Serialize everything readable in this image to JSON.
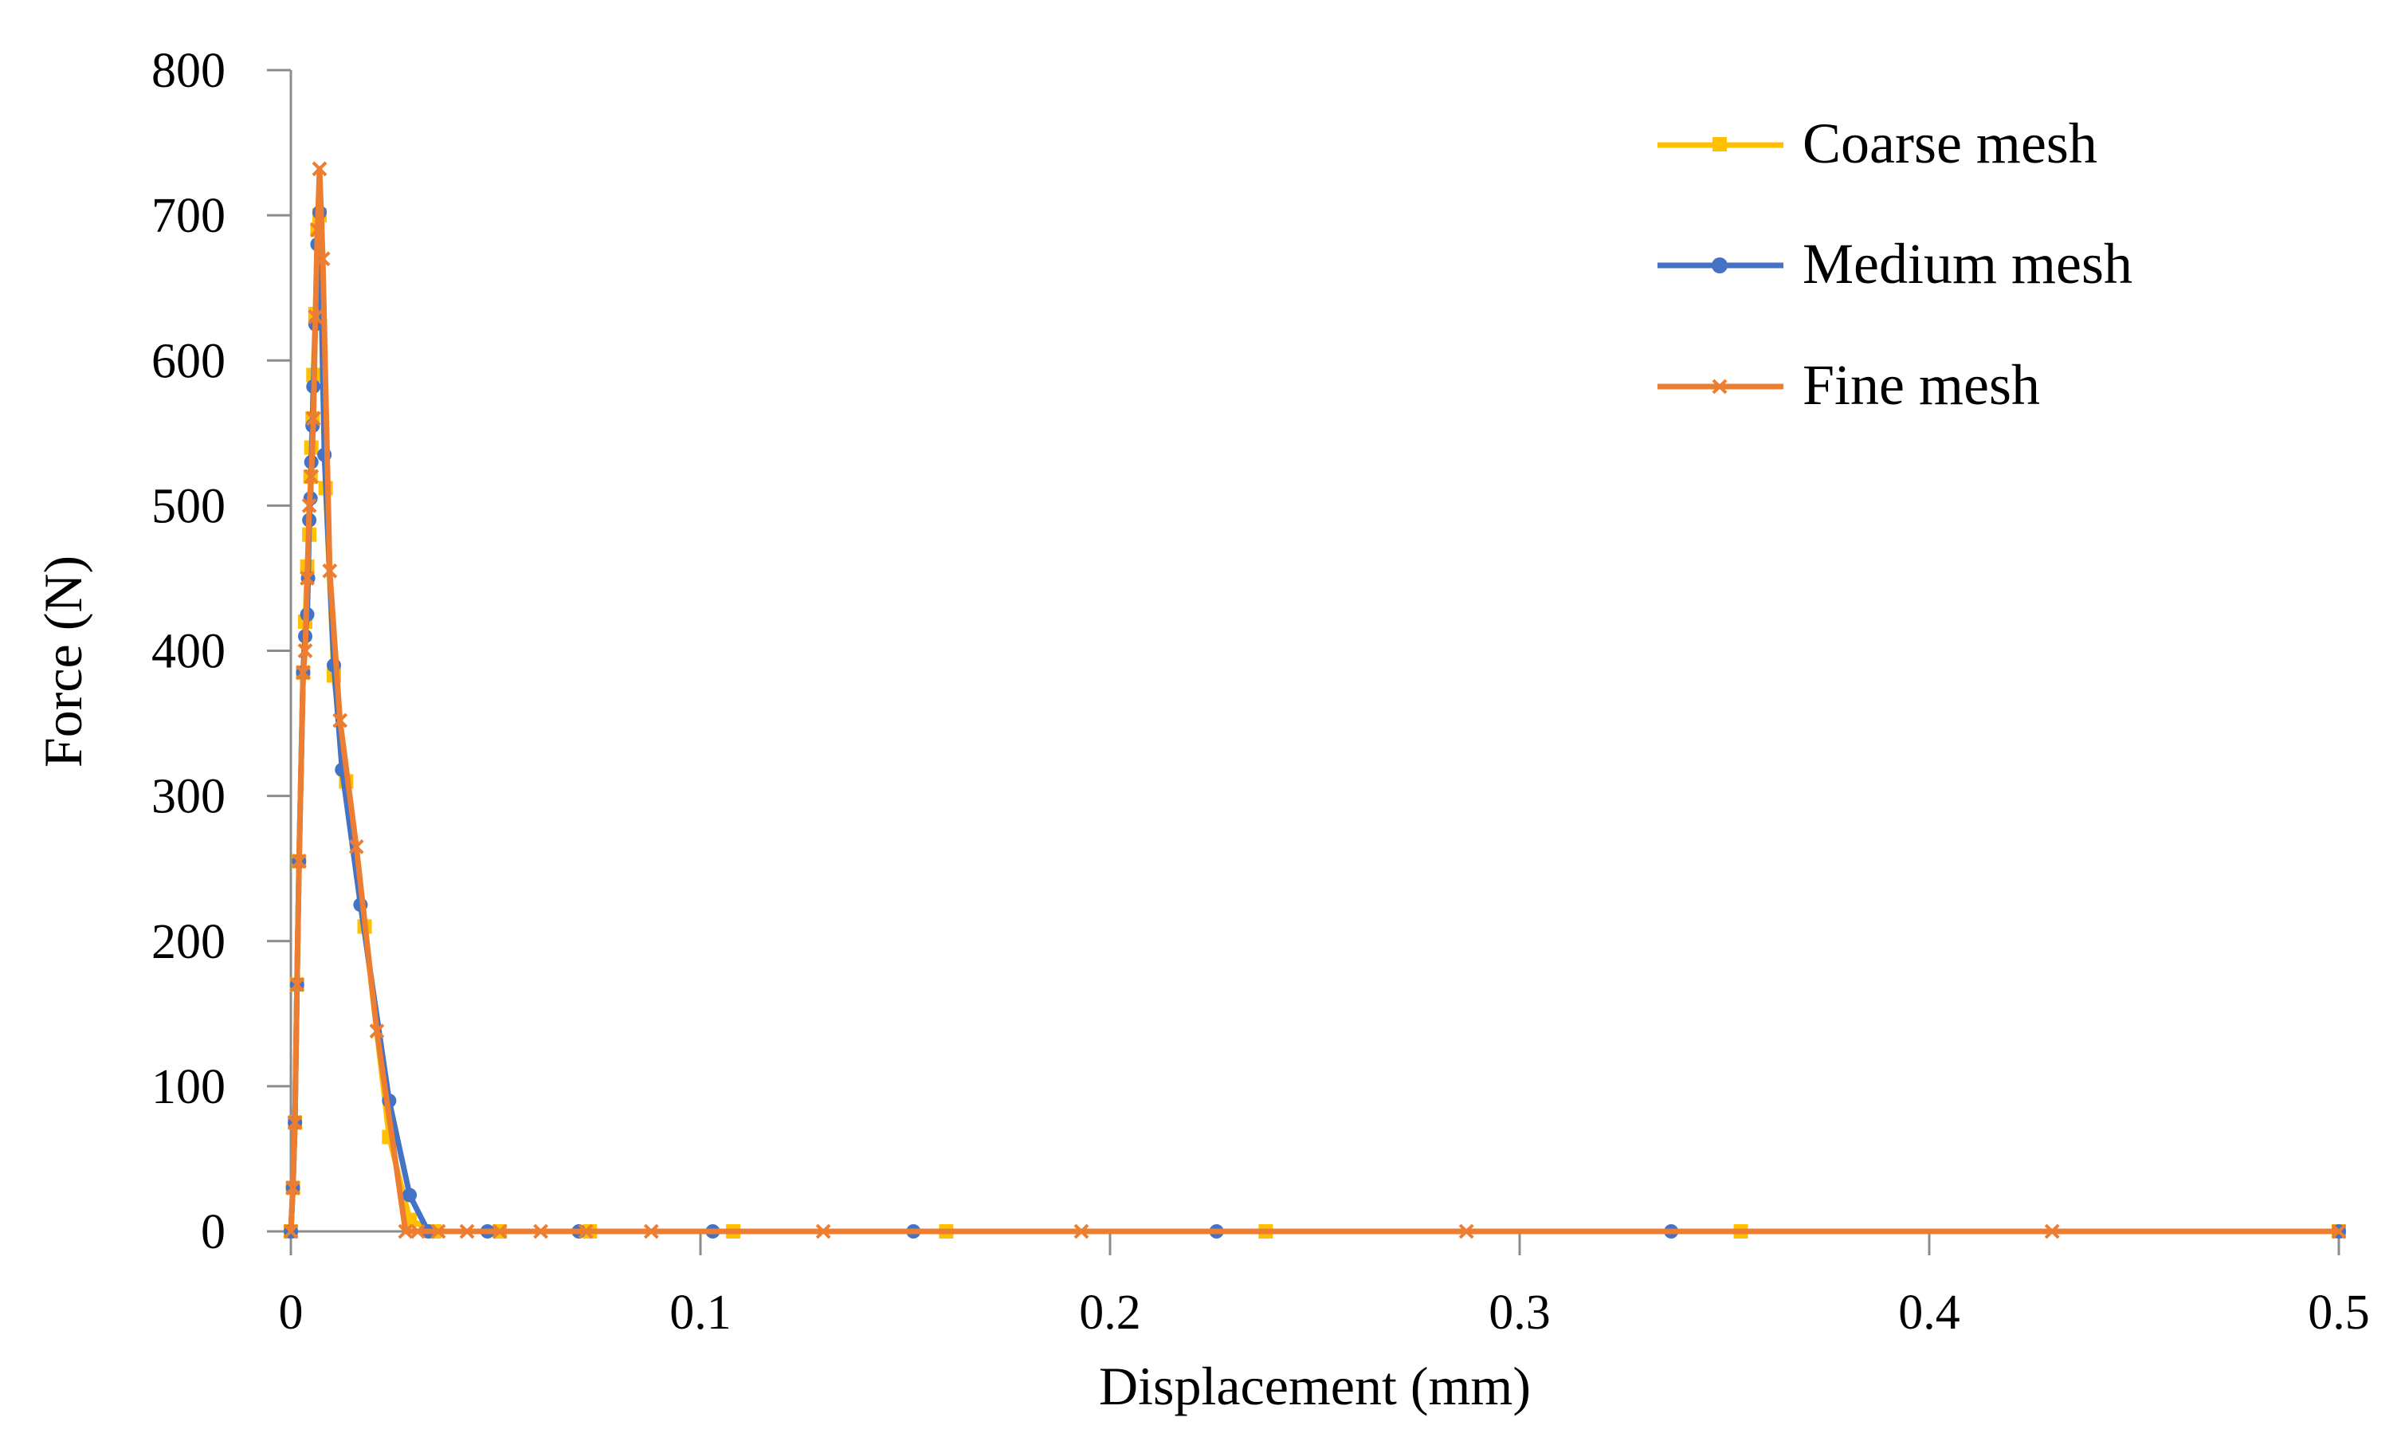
{
  "chart_data": {
    "type": "line",
    "title": "",
    "xlabel": "Displacement (mm)",
    "ylabel": "Force (N)",
    "xlim": [
      0,
      0.5
    ],
    "ylim": [
      0,
      800
    ],
    "x_ticks": [
      "0",
      "0.1",
      "0.2",
      "0.3",
      "0.4",
      "0.5"
    ],
    "y_ticks": [
      "0",
      "100",
      "200",
      "300",
      "400",
      "500",
      "600",
      "700",
      "800"
    ],
    "grid": false,
    "legend_position": "top-right",
    "series": [
      {
        "name": "Coarse mesh",
        "color": "#FFC000",
        "marker": "square",
        "points": [
          [
            0,
            0
          ],
          [
            0.0005,
            30
          ],
          [
            0.001,
            75
          ],
          [
            0.0015,
            170
          ],
          [
            0.002,
            255
          ],
          [
            0.003,
            385
          ],
          [
            0.0035,
            420
          ],
          [
            0.004,
            458
          ],
          [
            0.0045,
            480
          ],
          [
            0.0048,
            520
          ],
          [
            0.005,
            540
          ],
          [
            0.0053,
            560
          ],
          [
            0.0055,
            590
          ],
          [
            0.006,
            632
          ],
          [
            0.0065,
            690
          ],
          [
            0.007,
            700
          ],
          [
            0.0085,
            512
          ],
          [
            0.0105,
            383
          ],
          [
            0.0135,
            310
          ],
          [
            0.018,
            210
          ],
          [
            0.024,
            65
          ],
          [
            0.029,
            8
          ],
          [
            0.035,
            0
          ],
          [
            0.051,
            0
          ],
          [
            0.073,
            0
          ],
          [
            0.108,
            0
          ],
          [
            0.16,
            0
          ],
          [
            0.238,
            0
          ],
          [
            0.354,
            0
          ],
          [
            0.5,
            0
          ]
        ]
      },
      {
        "name": "Medium mesh",
        "color": "#4472C4",
        "marker": "circle",
        "points": [
          [
            0,
            0
          ],
          [
            0.0005,
            30
          ],
          [
            0.001,
            75
          ],
          [
            0.0015,
            170
          ],
          [
            0.002,
            255
          ],
          [
            0.003,
            385
          ],
          [
            0.0035,
            410
          ],
          [
            0.004,
            425
          ],
          [
            0.0042,
            450
          ],
          [
            0.0045,
            490
          ],
          [
            0.0048,
            505
          ],
          [
            0.005,
            530
          ],
          [
            0.0053,
            555
          ],
          [
            0.0055,
            582
          ],
          [
            0.006,
            625
          ],
          [
            0.0065,
            680
          ],
          [
            0.007,
            702
          ],
          [
            0.0082,
            535
          ],
          [
            0.0105,
            390
          ],
          [
            0.0125,
            318
          ],
          [
            0.017,
            225
          ],
          [
            0.024,
            90
          ],
          [
            0.029,
            25
          ],
          [
            0.0335,
            0
          ],
          [
            0.048,
            0
          ],
          [
            0.0703,
            0
          ],
          [
            0.103,
            0
          ],
          [
            0.152,
            0
          ],
          [
            0.226,
            0
          ],
          [
            0.337,
            0
          ],
          [
            0.5,
            0
          ]
        ]
      },
      {
        "name": "Fine mesh",
        "color": "#ED7D31",
        "marker": "x",
        "points": [
          [
            0,
            0
          ],
          [
            0.0005,
            30
          ],
          [
            0.001,
            75
          ],
          [
            0.0015,
            170
          ],
          [
            0.002,
            255
          ],
          [
            0.003,
            385
          ],
          [
            0.0035,
            400
          ],
          [
            0.004,
            450
          ],
          [
            0.0045,
            500
          ],
          [
            0.005,
            520
          ],
          [
            0.0055,
            560
          ],
          [
            0.006,
            630
          ],
          [
            0.0065,
            690
          ],
          [
            0.007,
            732
          ],
          [
            0.0078,
            670
          ],
          [
            0.0095,
            455
          ],
          [
            0.012,
            352
          ],
          [
            0.016,
            265
          ],
          [
            0.021,
            138
          ],
          [
            0.028,
            0
          ],
          [
            0.031,
            0
          ],
          [
            0.036,
            0
          ],
          [
            0.043,
            0
          ],
          [
            0.051,
            0
          ],
          [
            0.061,
            0
          ],
          [
            0.072,
            0
          ],
          [
            0.088,
            0
          ],
          [
            0.13,
            0
          ],
          [
            0.193,
            0
          ],
          [
            0.287,
            0
          ],
          [
            0.43,
            0
          ],
          [
            0.5,
            0
          ]
        ]
      }
    ]
  }
}
